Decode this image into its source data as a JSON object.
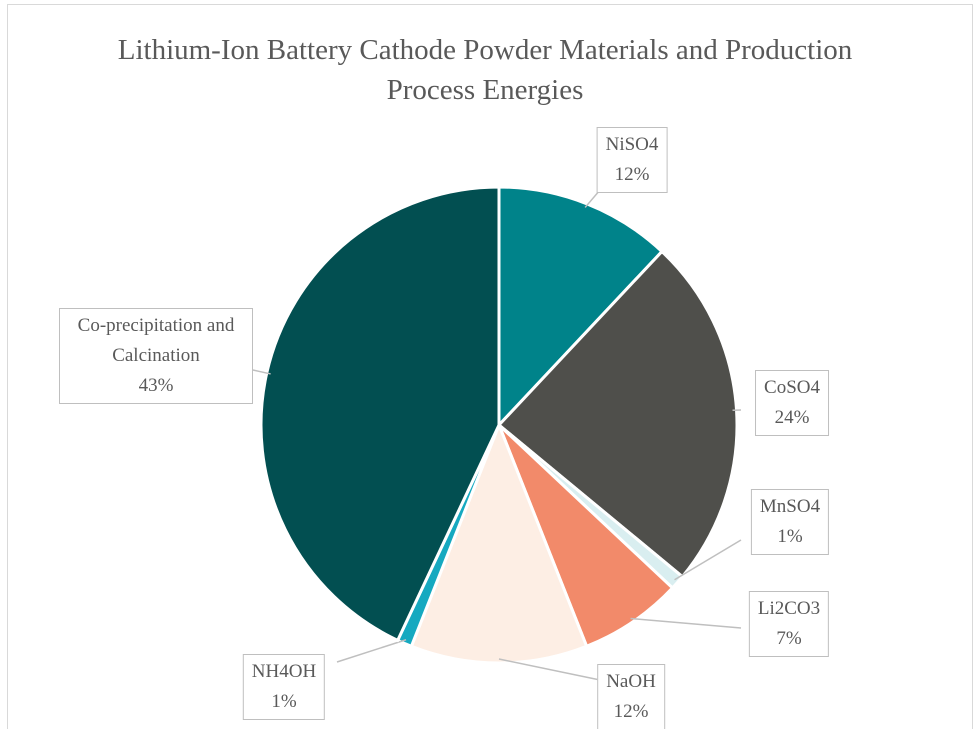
{
  "chart_data": {
    "type": "pie",
    "title": "Lithium-Ion Battery Cathode Powder Materials and Production Process Energies",
    "categories": [
      "NiSO4",
      "CoSO4",
      "MnSO4",
      "Li2CO3",
      "NaOH",
      "NH4OH",
      "Co-precipitation and Calcination"
    ],
    "values": [
      12,
      24,
      1,
      7,
      12,
      1,
      43
    ],
    "value_labels": [
      "12%",
      "24%",
      "1%",
      "7%",
      "12%",
      "1%",
      "43%"
    ],
    "colors": [
      "#00838a",
      "#4f4f4b",
      "#d9eef0",
      "#f28a6a",
      "#fdeee4",
      "#16a9c0",
      "#024f51"
    ]
  }
}
